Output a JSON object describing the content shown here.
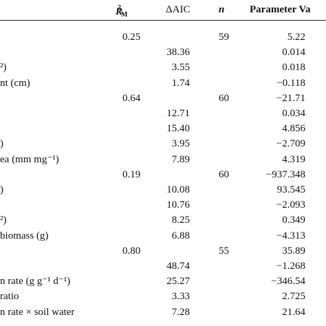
{
  "header": {
    "r2_main": "R",
    "r2_sup": "2",
    "r2_sub": "M",
    "aic": "ΔAIC",
    "n": "n",
    "param": "Parameter Va"
  },
  "rows": [
    {
      "label": "",
      "r2": "0.25",
      "aic": "",
      "n": "59",
      "pv": "5.22"
    },
    {
      "label": "",
      "r2": "",
      "aic": "38.36",
      "n": "",
      "pv": "0.014"
    },
    {
      "label": "²)",
      "r2": "",
      "aic": "3.55",
      "n": "",
      "pv": "0.018"
    },
    {
      "label": "nt (cm)",
      "r2": "",
      "aic": "1.74",
      "n": "",
      "pv": "−0.118"
    },
    {
      "label": "",
      "r2": "0.64",
      "aic": "",
      "n": "60",
      "pv": "−21.71"
    },
    {
      "label": "",
      "r2": "",
      "aic": "12.71",
      "n": "",
      "pv": "0.034"
    },
    {
      "label": "",
      "r2": "",
      "aic": "15.40",
      "n": "",
      "pv": "4.856"
    },
    {
      "label": ")",
      "r2": "",
      "aic": "3.95",
      "n": "",
      "pv": "−2.709"
    },
    {
      "label": "ea (mm mg⁻¹)",
      "r2": "",
      "aic": "7.89",
      "n": "",
      "pv": "4.319"
    },
    {
      "label": "",
      "r2": "0.19",
      "aic": "",
      "n": "60",
      "pv": "−937.348"
    },
    {
      "label": ")",
      "r2": "",
      "aic": "10.08",
      "n": "",
      "pv": "93.545"
    },
    {
      "label": "",
      "r2": "",
      "aic": "10.76",
      "n": "",
      "pv": "−2.093"
    },
    {
      "label": "²)",
      "r2": "",
      "aic": "8.25",
      "n": "",
      "pv": "0.349"
    },
    {
      "label": "biomass (g)",
      "r2": "",
      "aic": "6.88",
      "n": "",
      "pv": "−4.313"
    },
    {
      "label": "",
      "r2": "0.80",
      "aic": "",
      "n": "55",
      "pv": "35.89"
    },
    {
      "label": "",
      "r2": "",
      "aic": "48.74",
      "n": "",
      "pv": "−1.268"
    },
    {
      "label": "n rate (g g⁻¹ d⁻¹)",
      "r2": "",
      "aic": "25.27",
      "n": "",
      "pv": "−346.54"
    },
    {
      "label": "ratio",
      "r2": "",
      "aic": "3.33",
      "n": "",
      "pv": "2.725"
    },
    {
      "label": "n rate × soil water",
      "r2": "",
      "aic": "7.28",
      "n": "",
      "pv": "21.64"
    }
  ]
}
